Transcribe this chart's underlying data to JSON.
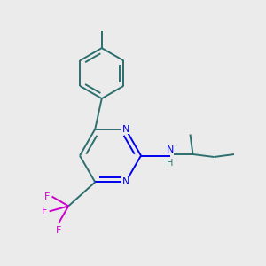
{
  "bg_color": "#ebebeb",
  "bond_color": "#2d6e6e",
  "N_color": "#0000ee",
  "F_color": "#cc00cc",
  "lw": 1.4,
  "dbl_off": 0.018,
  "figsize": [
    3.0,
    3.0
  ],
  "dpi": 100,
  "xlim": [
    0.0,
    1.0
  ],
  "ylim": [
    0.0,
    1.0
  ]
}
